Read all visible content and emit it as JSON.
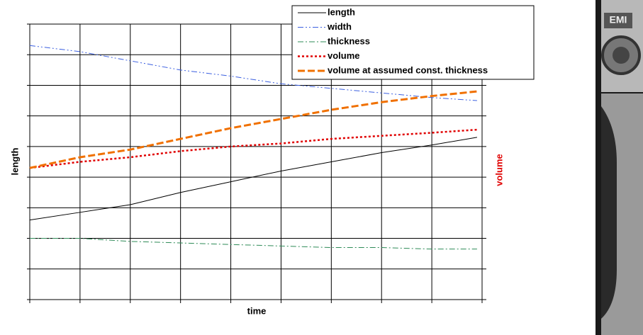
{
  "chart_data": {
    "type": "line",
    "x_label": "time",
    "y_label": "length",
    "y2_label": "volume",
    "x": [
      0,
      1,
      2,
      3,
      4,
      5,
      6,
      7,
      8,
      8.9
    ],
    "xlim": [
      0,
      9
    ],
    "ylim": [
      0,
      9
    ],
    "xticks": [
      0,
      1,
      2,
      3,
      4,
      5,
      6,
      7,
      8,
      9
    ],
    "yticks": [
      0,
      1,
      2,
      3,
      4,
      5,
      6,
      7,
      8,
      9
    ],
    "grid": true,
    "legend": "top-right",
    "series": [
      {
        "name": "length",
        "color": "#000000",
        "dash": "",
        "width": 1,
        "values": [
          2.6,
          2.85,
          3.1,
          3.5,
          3.85,
          4.2,
          4.5,
          4.8,
          5.05,
          5.3
        ]
      },
      {
        "name": "width",
        "color": "#3b5fe0",
        "dash": "8 3 2 3 2 3",
        "width": 1,
        "values": [
          8.3,
          8.1,
          7.8,
          7.5,
          7.3,
          7.05,
          6.9,
          6.75,
          6.6,
          6.5
        ]
      },
      {
        "name": "thickness",
        "color": "#2e8b57",
        "dash": "8 3 2 3",
        "width": 1,
        "values": [
          2.0,
          2.0,
          1.9,
          1.85,
          1.8,
          1.75,
          1.7,
          1.7,
          1.65,
          1.65
        ]
      },
      {
        "name": "volume",
        "color": "#e00000",
        "dash": "3 3",
        "width": 2.5,
        "values": [
          4.3,
          4.5,
          4.65,
          4.85,
          5.0,
          5.1,
          5.25,
          5.35,
          5.45,
          5.55
        ]
      },
      {
        "name": "volume at assumed const. thickness",
        "color": "#f07000",
        "dash": "10 4",
        "width": 3,
        "values": [
          4.3,
          4.65,
          4.9,
          5.25,
          5.6,
          5.9,
          6.2,
          6.45,
          6.65,
          6.8
        ]
      }
    ]
  }
}
